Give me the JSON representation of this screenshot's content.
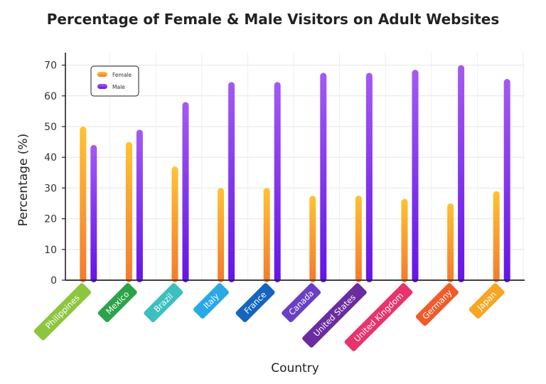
{
  "chart_data": {
    "type": "bar",
    "title": "Percentage of Female & Male Visitors on Adult Websites",
    "xlabel": "Country",
    "ylabel": "Percentage (%)",
    "ylim": [
      0,
      72
    ],
    "yticks": [
      0,
      10,
      20,
      30,
      40,
      50,
      60,
      70
    ],
    "grid": true,
    "legend_position": "top-left",
    "categories": [
      "Philippines",
      "Mexico",
      "Brazil",
      "Italy",
      "France",
      "Canada",
      "United States",
      "United Kingdom",
      "Germany",
      "Japan"
    ],
    "category_colors": [
      "#8cc63f",
      "#2ca34a",
      "#3cbfbf",
      "#29a9e6",
      "#1565c0",
      "#6a3fc7",
      "#6a2c9e",
      "#e8336d",
      "#ef5b2a",
      "#f6a623"
    ],
    "series": [
      {
        "name": "Female",
        "values": [
          50,
          45,
          37,
          30,
          30,
          27.5,
          27.5,
          26.5,
          25,
          29
        ],
        "color_top": "#ffc233",
        "color_bottom": "#f47a2e"
      },
      {
        "name": "Male",
        "values": [
          44,
          49,
          58,
          64.5,
          64.5,
          67.5,
          67.5,
          68.5,
          70,
          65.5
        ],
        "color_top": "#a559f2",
        "color_bottom": "#6414e6"
      }
    ]
  }
}
